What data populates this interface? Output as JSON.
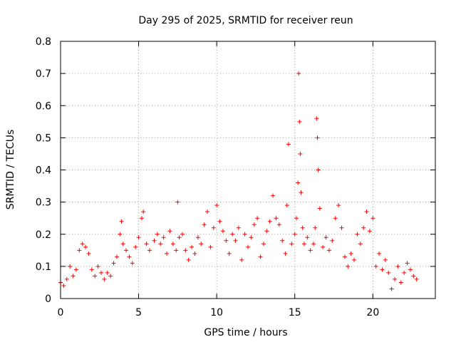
{
  "chart_data": {
    "type": "scatter",
    "title": "Day 295 of 2025, SRMTID for receiver reun",
    "xlabel": "GPS time / hours",
    "ylabel": "SRMTID / TECUs",
    "xlim": [
      0,
      24
    ],
    "ylim": [
      0,
      0.8
    ],
    "xticks": [
      0,
      5,
      10,
      15,
      20
    ],
    "yticks": [
      0,
      0.1,
      0.2,
      0.3,
      0.4,
      0.5,
      0.6,
      0.7,
      0.8
    ],
    "xtick_labels": [
      "0",
      "5",
      "10",
      "15",
      "20"
    ],
    "ytick_labels": [
      "0",
      "0.1",
      "0.2",
      "0.3",
      "0.4",
      "0.5",
      "0.6",
      "0.7",
      "0.8"
    ],
    "grid": true,
    "marker": "+",
    "color": "#ff0000",
    "series": [
      {
        "name": "reun",
        "x": [
          0.0,
          0.2,
          0.4,
          0.6,
          0.8,
          1.0,
          1.2,
          1.4,
          1.6,
          1.8,
          2.0,
          2.2,
          2.4,
          2.6,
          2.8,
          3.0,
          3.2,
          3.4,
          3.6,
          3.8,
          3.9,
          4.0,
          4.2,
          4.4,
          4.6,
          4.8,
          5.0,
          5.2,
          5.3,
          5.5,
          5.7,
          6.0,
          6.2,
          6.4,
          6.6,
          6.8,
          7.0,
          7.2,
          7.4,
          7.5,
          7.6,
          7.8,
          8.0,
          8.2,
          8.4,
          8.6,
          8.8,
          9.0,
          9.2,
          9.4,
          9.6,
          9.8,
          10.0,
          10.2,
          10.4,
          10.6,
          10.8,
          11.0,
          11.2,
          11.4,
          11.6,
          11.8,
          12.0,
          12.2,
          12.4,
          12.6,
          12.8,
          13.0,
          13.2,
          13.4,
          13.6,
          13.8,
          14.0,
          14.2,
          14.4,
          14.5,
          14.6,
          14.8,
          15.0,
          15.1,
          15.2,
          15.25,
          15.3,
          15.35,
          15.4,
          15.5,
          15.6,
          15.8,
          16.0,
          16.2,
          16.3,
          16.4,
          16.45,
          16.5,
          16.6,
          16.8,
          17.0,
          17.2,
          17.4,
          17.6,
          17.8,
          18.0,
          18.2,
          18.4,
          18.6,
          18.8,
          19.0,
          19.2,
          19.4,
          19.6,
          19.8,
          20.0,
          20.2,
          20.4,
          20.6,
          20.8,
          21.0,
          21.2,
          21.4,
          21.6,
          21.8,
          22.0,
          22.2,
          22.4,
          22.6,
          22.8
        ],
        "y": [
          0.05,
          0.04,
          0.06,
          0.1,
          0.07,
          0.09,
          0.15,
          0.17,
          0.16,
          0.14,
          0.09,
          0.07,
          0.1,
          0.08,
          0.06,
          0.08,
          0.07,
          0.11,
          0.13,
          0.2,
          0.24,
          0.17,
          0.15,
          0.13,
          0.11,
          0.16,
          0.19,
          0.25,
          0.27,
          0.17,
          0.15,
          0.18,
          0.2,
          0.17,
          0.19,
          0.14,
          0.21,
          0.17,
          0.15,
          0.3,
          0.19,
          0.2,
          0.15,
          0.12,
          0.16,
          0.14,
          0.19,
          0.17,
          0.23,
          0.27,
          0.16,
          0.22,
          0.29,
          0.24,
          0.21,
          0.18,
          0.14,
          0.2,
          0.18,
          0.22,
          0.12,
          0.2,
          0.16,
          0.19,
          0.23,
          0.25,
          0.13,
          0.17,
          0.21,
          0.24,
          0.32,
          0.25,
          0.23,
          0.18,
          0.14,
          0.29,
          0.48,
          0.17,
          0.2,
          0.25,
          0.36,
          0.7,
          0.55,
          0.45,
          0.33,
          0.22,
          0.17,
          0.19,
          0.15,
          0.17,
          0.22,
          0.56,
          0.5,
          0.4,
          0.28,
          0.16,
          0.19,
          0.15,
          0.18,
          0.25,
          0.29,
          0.22,
          0.13,
          0.1,
          0.14,
          0.12,
          0.2,
          0.17,
          0.22,
          0.27,
          0.21,
          0.25,
          0.1,
          0.14,
          0.09,
          0.12,
          0.08,
          0.03,
          0.06,
          0.1,
          0.05,
          0.08,
          0.11,
          0.09,
          0.07,
          0.06
        ]
      }
    ]
  }
}
